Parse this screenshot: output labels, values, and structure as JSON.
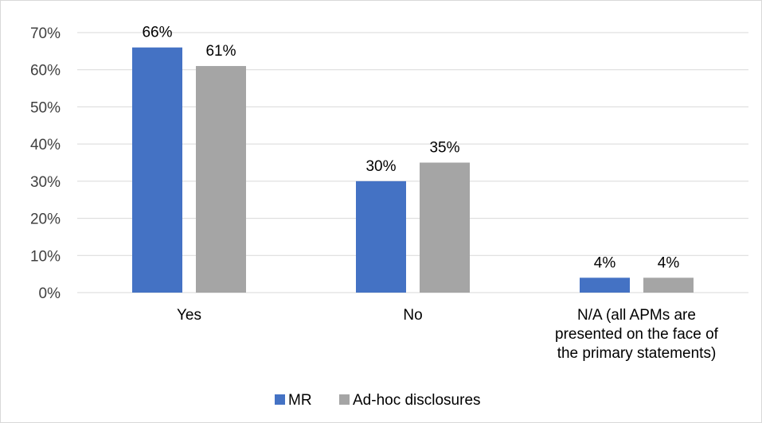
{
  "chart_data": {
    "type": "bar",
    "categories": [
      [
        "Yes"
      ],
      [
        "No"
      ],
      [
        "N/A (all APMs are",
        "presented on the face of",
        "the primary statements)"
      ]
    ],
    "series": [
      {
        "name": "MR",
        "values": [
          66,
          30,
          4
        ],
        "labels": [
          "66%",
          "30%",
          "4%"
        ],
        "color": "#4472c4"
      },
      {
        "name": "Ad-hoc disclosures",
        "values": [
          61,
          35,
          4
        ],
        "labels": [
          "61%",
          "35%",
          "4%"
        ],
        "color": "#a5a5a5"
      }
    ],
    "yticks": [
      "0%",
      "10%",
      "20%",
      "30%",
      "40%",
      "50%",
      "60%",
      "70%"
    ],
    "ylim": [
      0,
      70
    ],
    "grid": true,
    "legend": "bottom"
  }
}
